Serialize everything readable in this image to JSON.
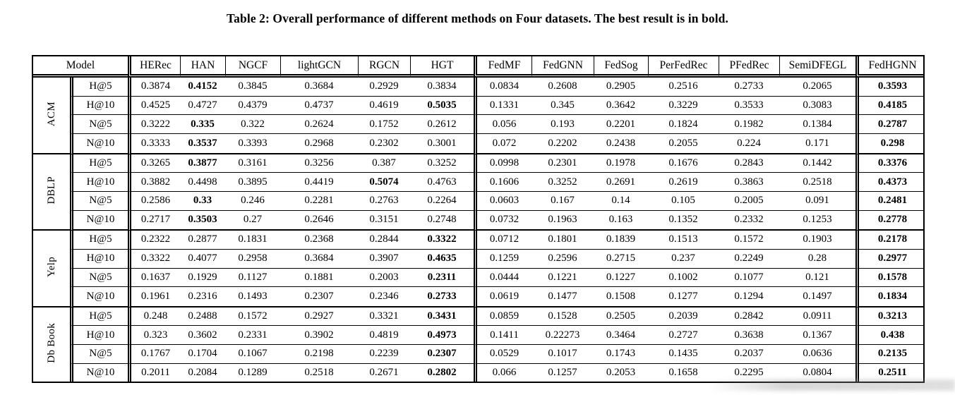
{
  "title": "Table 2: Overall performance of different methods on Four datasets. The best result is in bold.",
  "table": {
    "model_header_label": "Model",
    "method_columns": [
      "HERec",
      "HAN",
      "NGCF",
      "lightGCN",
      "RGCN",
      "HGT",
      "FedMF",
      "FedGNN",
      "FedSog",
      "PerFedRec",
      "PFedRec",
      "SemiDFEGL",
      "FedHGNN"
    ],
    "group_boundary_columns": [
      0,
      6,
      12
    ],
    "groups": [
      {
        "dataset": "ACM",
        "rows": [
          {
            "metric": "H@5",
            "values": [
              "0.3874",
              "0.4152",
              "0.3845",
              "0.3684",
              "0.2929",
              "0.3834",
              "0.0834",
              "0.2608",
              "0.2905",
              "0.2516",
              "0.2733",
              "0.2065",
              "0.3593"
            ],
            "bold": [
              1,
              12
            ]
          },
          {
            "metric": "H@10",
            "values": [
              "0.4525",
              "0.4727",
              "0.4379",
              "0.4737",
              "0.4619",
              "0.5035",
              "0.1331",
              "0.345",
              "0.3642",
              "0.3229",
              "0.3533",
              "0.3083",
              "0.4185"
            ],
            "bold": [
              5,
              12
            ]
          },
          {
            "metric": "N@5",
            "values": [
              "0.3222",
              "0.335",
              "0.322",
              "0.2624",
              "0.1752",
              "0.2612",
              "0.056",
              "0.193",
              "0.2201",
              "0.1824",
              "0.1982",
              "0.1384",
              "0.2787"
            ],
            "bold": [
              1,
              12
            ]
          },
          {
            "metric": "N@10",
            "values": [
              "0.3333",
              "0.3537",
              "0.3393",
              "0.2968",
              "0.2302",
              "0.3001",
              "0.072",
              "0.2202",
              "0.2438",
              "0.2055",
              "0.224",
              "0.171",
              "0.298"
            ],
            "bold": [
              1,
              12
            ]
          }
        ]
      },
      {
        "dataset": "DBLP",
        "rows": [
          {
            "metric": "H@5",
            "values": [
              "0.3265",
              "0.3877",
              "0.3161",
              "0.3256",
              "0.387",
              "0.3252",
              "0.0998",
              "0.2301",
              "0.1978",
              "0.1676",
              "0.2843",
              "0.1442",
              "0.3376"
            ],
            "bold": [
              1,
              12
            ]
          },
          {
            "metric": "H@10",
            "values": [
              "0.3882",
              "0.4498",
              "0.3895",
              "0.4419",
              "0.5074",
              "0.4763",
              "0.1606",
              "0.3252",
              "0.2691",
              "0.2619",
              "0.3863",
              "0.2518",
              "0.4373"
            ],
            "bold": [
              4,
              12
            ]
          },
          {
            "metric": "N@5",
            "values": [
              "0.2586",
              "0.33",
              "0.246",
              "0.2281",
              "0.2763",
              "0.2264",
              "0.0603",
              "0.167",
              "0.14",
              "0.105",
              "0.2005",
              "0.091",
              "0.2481"
            ],
            "bold": [
              1,
              12
            ]
          },
          {
            "metric": "N@10",
            "values": [
              "0.2717",
              "0.3503",
              "0.27",
              "0.2646",
              "0.3151",
              "0.2748",
              "0.0732",
              "0.1963",
              "0.163",
              "0.1352",
              "0.2332",
              "0.1253",
              "0.2778"
            ],
            "bold": [
              1,
              12
            ]
          }
        ]
      },
      {
        "dataset": "Yelp",
        "rows": [
          {
            "metric": "H@5",
            "values": [
              "0.2322",
              "0.2877",
              "0.1831",
              "0.2368",
              "0.2844",
              "0.3322",
              "0.0712",
              "0.1801",
              "0.1839",
              "0.1513",
              "0.1572",
              "0.1903",
              "0.2178"
            ],
            "bold": [
              5,
              12
            ]
          },
          {
            "metric": "H@10",
            "values": [
              "0.3322",
              "0.4077",
              "0.2958",
              "0.3684",
              "0.3907",
              "0.4635",
              "0.1259",
              "0.2596",
              "0.2715",
              "0.237",
              "0.2249",
              "0.28",
              "0.2977"
            ],
            "bold": [
              5,
              12
            ]
          },
          {
            "metric": "N@5",
            "values": [
              "0.1637",
              "0.1929",
              "0.1127",
              "0.1881",
              "0.2003",
              "0.2311",
              "0.0444",
              "0.1221",
              "0.1227",
              "0.1002",
              "0.1077",
              "0.121",
              "0.1578"
            ],
            "bold": [
              5,
              12
            ]
          },
          {
            "metric": "N@10",
            "values": [
              "0.1961",
              "0.2316",
              "0.1493",
              "0.2307",
              "0.2346",
              "0.2733",
              "0.0619",
              "0.1477",
              "0.1508",
              "0.1277",
              "0.1294",
              "0.1497",
              "0.1834"
            ],
            "bold": [
              5,
              12
            ]
          }
        ]
      },
      {
        "dataset": "Db Book",
        "rows": [
          {
            "metric": "H@5",
            "values": [
              "0.248",
              "0.2488",
              "0.1572",
              "0.2927",
              "0.3321",
              "0.3431",
              "0.0859",
              "0.1528",
              "0.2505",
              "0.2039",
              "0.2842",
              "0.0911",
              "0.3213"
            ],
            "bold": [
              5,
              12
            ]
          },
          {
            "metric": "H@10",
            "values": [
              "0.323",
              "0.3602",
              "0.2331",
              "0.3902",
              "0.4819",
              "0.4973",
              "0.1411",
              "0.22273",
              "0.3464",
              "0.2727",
              "0.3638",
              "0.1367",
              "0.438"
            ],
            "bold": [
              5,
              12
            ]
          },
          {
            "metric": "N@5",
            "values": [
              "0.1767",
              "0.1704",
              "0.1067",
              "0.2198",
              "0.2239",
              "0.2307",
              "0.0529",
              "0.1017",
              "0.1743",
              "0.1435",
              "0.2037",
              "0.0636",
              "0.2135"
            ],
            "bold": [
              5,
              12
            ]
          },
          {
            "metric": "N@10",
            "values": [
              "0.2011",
              "0.2084",
              "0.1289",
              "0.2518",
              "0.2671",
              "0.2802",
              "0.066",
              "0.1257",
              "0.2053",
              "0.1658",
              "0.2295",
              "0.0804",
              "0.2511"
            ],
            "bold": [
              5,
              12
            ]
          }
        ]
      }
    ]
  }
}
